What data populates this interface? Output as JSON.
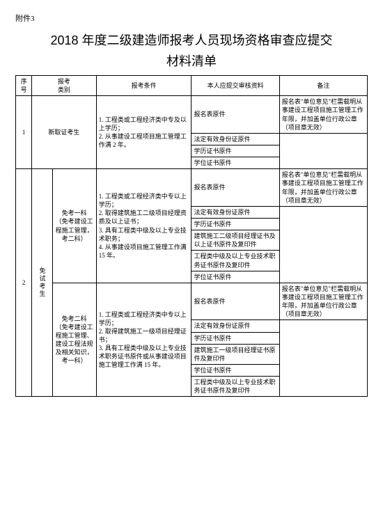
{
  "attachment": "附件3",
  "title_line1": "2018 年度二级建造师报考人员现场资格审查应提交",
  "title_line2": "材料清单",
  "headers": {
    "seq": "序号",
    "category": "报考\n类别",
    "conditions": "报考条件",
    "materials": "本人应提交审核资料",
    "remarks": "备注"
  },
  "row1": {
    "seq": "1",
    "category": "新取证考生",
    "conditions": "1. 工程类或工程经济类中专及以上学历；\n2. 从事建设工程项目施工管理工作满 2 年。",
    "materials": [
      "报名表原件",
      "法定有效身份证原件",
      "学历证书原件",
      "学位证书原件"
    ],
    "remark": "报名表\"单位意见\"栏需载明从事建设工程项目施工管理工作年限，并加盖单位行政公章（项目章无效）"
  },
  "row2": {
    "seq": "2",
    "category": "免试考生",
    "sub1": {
      "name": "免考一科\n（免考建设工程施工管理，考二科）",
      "conditions": "1. 工程类或工程经济类中专以上学历；\n2. 取得建筑施工二级项目经理资质及以上证书；\n3. 具有工程类中级及以上专业技术职务；\n4. 从事建设项目施工管理工作满 15 年。",
      "materials": [
        "报名表原件",
        "法定有效身份证原件",
        "学历证书原件",
        "建筑施工二级项目经理证书及以上证书原件及复印件",
        "工程类中级及以上专业技术职务证书原件及复印件",
        "学位证书原件"
      ],
      "remark": "报名表\"单位意见\"栏需载明从事建设工程项目施工管理工作年限，并加盖单位行政公章（项目章无效）"
    },
    "sub2": {
      "name": "免考二科\n（免考建设工程施工管理、建设工程法规及相关知识，考一科）",
      "conditions": "1. 工程类或工程经济类中专以上学历；\n2. 取得建筑施工一级项目经理证书；\n3. 具有工程类中级及以上专业技术职务证书原件或从事建设项目施工管理工作满 15 年。",
      "materials": [
        "报名表原件",
        "法定有效身份证原件",
        "学历证书原件",
        "建筑施工一级项目经理证书原件及复印件",
        "学位证书原件",
        "工程类中级及以上专业技术职务证书原件及复印件"
      ],
      "remark": "报名表\"单位意见\"栏需载明从事建设工程项目施工管理工作年限，并加盖单位行政公章（项目章无效）"
    }
  }
}
